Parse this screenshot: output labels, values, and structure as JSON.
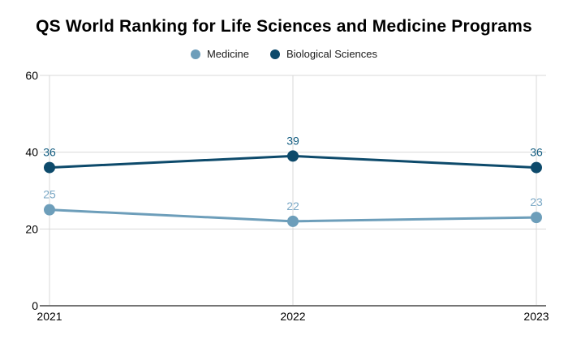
{
  "chart_data": {
    "type": "line",
    "title": "QS World Ranking for Life Sciences and Medicine Programs",
    "x": [
      "2021",
      "2022",
      "2023"
    ],
    "series": [
      {
        "name": "Medicine",
        "values": [
          25,
          22,
          23
        ],
        "color": "#6d9eba",
        "label_color": "#7ca9c6"
      },
      {
        "name": "Biological Sciences",
        "values": [
          36,
          39,
          36
        ],
        "color": "#0d4a6b",
        "label_color": "#145e82"
      }
    ],
    "ylim": [
      0,
      60
    ],
    "yticks": [
      0,
      20,
      40,
      60
    ],
    "grid": true,
    "legend_position": "top",
    "point_labels": true,
    "axis_color": "#757575",
    "gridline_color": "#d9d9d9",
    "tick_label_color": "#000000",
    "title_color": "#000000"
  }
}
